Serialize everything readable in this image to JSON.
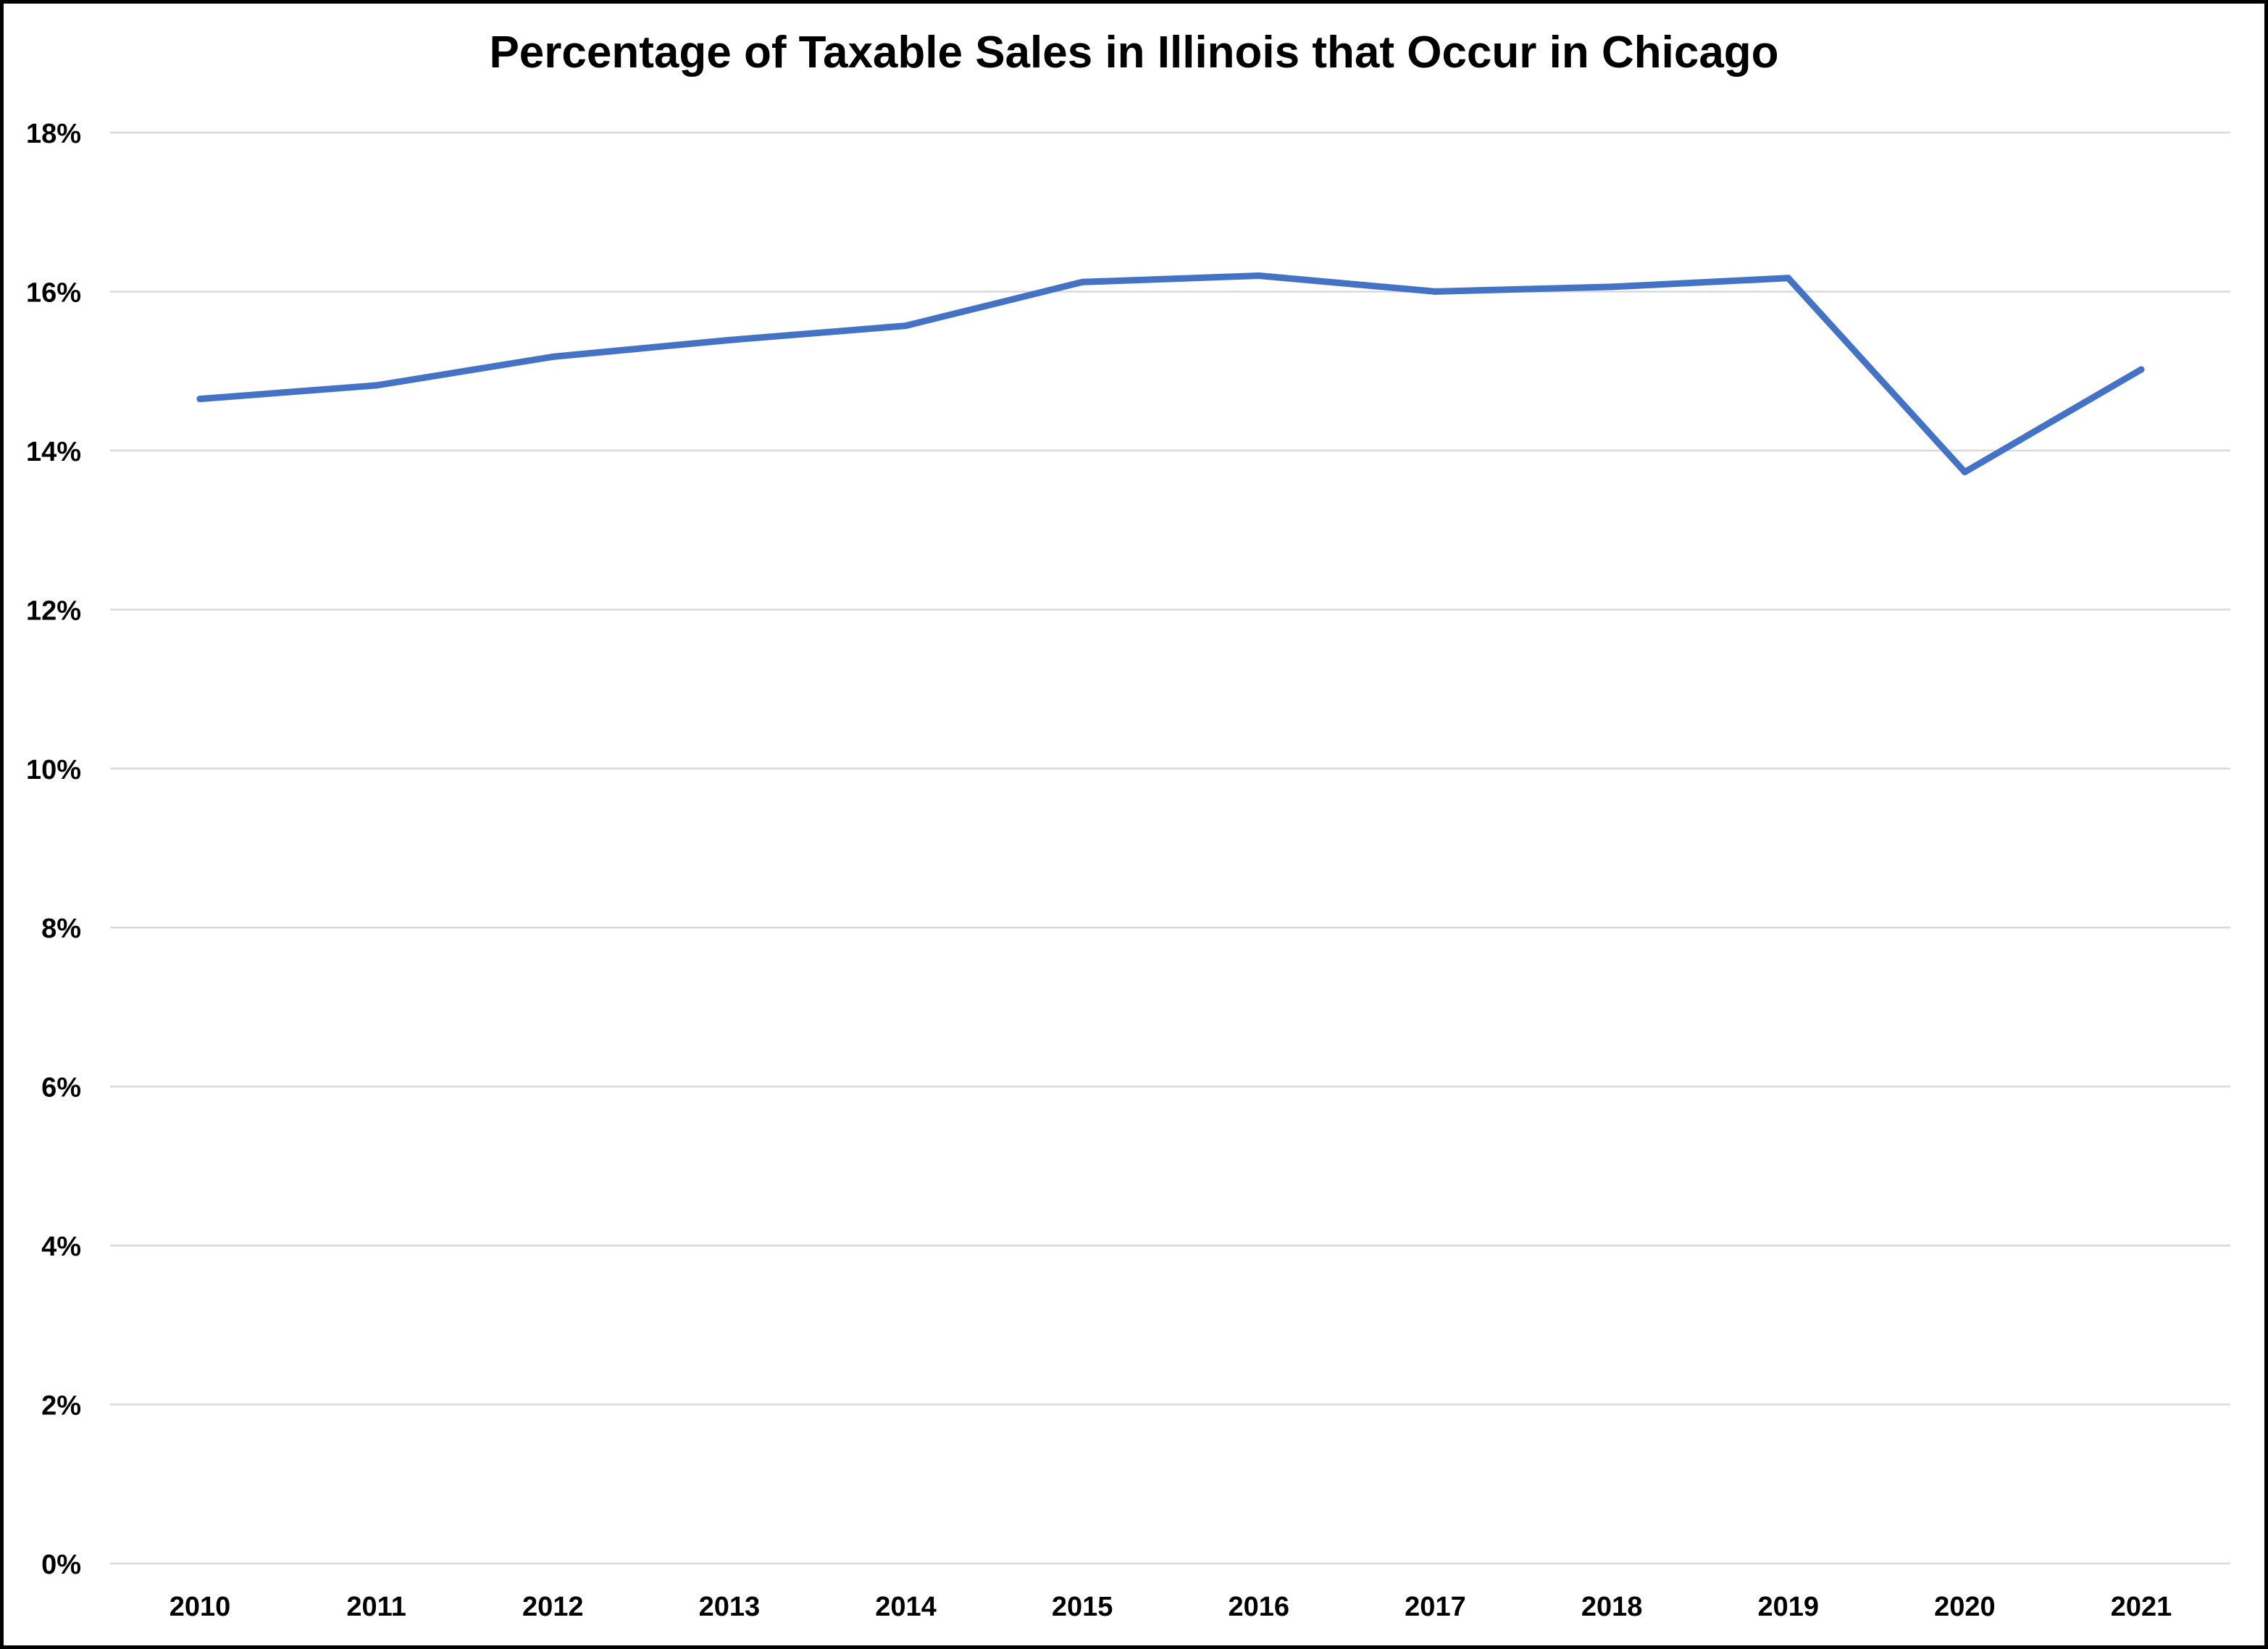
{
  "chart_data": {
    "type": "line",
    "title": "Percentage of Taxable Sales in Illinois that Occur in Chicago",
    "xlabel": "",
    "ylabel": "",
    "x": [
      "2010",
      "2011",
      "2012",
      "2013",
      "2014",
      "2015",
      "2016",
      "2017",
      "2018",
      "2019",
      "2020",
      "2021"
    ],
    "series": [
      {
        "values": [
          14.65,
          14.82,
          15.18,
          15.39,
          15.57,
          16.12,
          16.2,
          16.0,
          16.06,
          16.17,
          13.73,
          15.02
        ],
        "color": "#4472C4"
      }
    ],
    "ylim": [
      0,
      18
    ],
    "yticks": [
      0,
      2,
      4,
      6,
      8,
      10,
      12,
      14,
      16,
      18
    ],
    "ytick_labels": [
      "0%",
      "2%",
      "4%",
      "6%",
      "8%",
      "10%",
      "12%",
      "14%",
      "16%",
      "18%"
    ],
    "grid": true,
    "gridline_color": "#D9D9D9",
    "legend": "none"
  }
}
